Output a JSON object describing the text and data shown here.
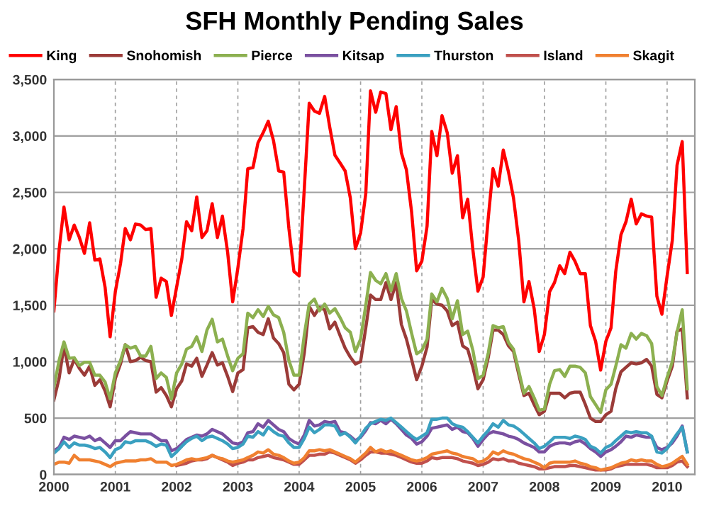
{
  "chart_data": {
    "type": "line",
    "title": "SFH Monthly Pending Sales",
    "x": [
      "2000-01",
      "2000-02",
      "2000-03",
      "2000-04",
      "2000-05",
      "2000-06",
      "2000-07",
      "2000-08",
      "2000-09",
      "2000-10",
      "2000-11",
      "2000-12",
      "2001-01",
      "2001-02",
      "2001-03",
      "2001-04",
      "2001-05",
      "2001-06",
      "2001-07",
      "2001-08",
      "2001-09",
      "2001-10",
      "2001-11",
      "2001-12",
      "2002-01",
      "2002-02",
      "2002-03",
      "2002-04",
      "2002-05",
      "2002-06",
      "2002-07",
      "2002-08",
      "2002-09",
      "2002-10",
      "2002-11",
      "2002-12",
      "2003-01",
      "2003-02",
      "2003-03",
      "2003-04",
      "2003-05",
      "2003-06",
      "2003-07",
      "2003-08",
      "2003-09",
      "2003-10",
      "2003-11",
      "2003-12",
      "2004-01",
      "2004-02",
      "2004-03",
      "2004-04",
      "2004-05",
      "2004-06",
      "2004-07",
      "2004-08",
      "2004-09",
      "2004-10",
      "2004-11",
      "2004-12",
      "2005-01",
      "2005-02",
      "2005-03",
      "2005-04",
      "2005-05",
      "2005-06",
      "2005-07",
      "2005-08",
      "2005-09",
      "2005-10",
      "2005-11",
      "2005-12",
      "2006-01",
      "2006-02",
      "2006-03",
      "2006-04",
      "2006-05",
      "2006-06",
      "2006-07",
      "2006-08",
      "2006-09",
      "2006-10",
      "2006-11",
      "2006-12",
      "2007-01",
      "2007-02",
      "2007-03",
      "2007-04",
      "2007-05",
      "2007-06",
      "2007-07",
      "2007-08",
      "2007-09",
      "2007-10",
      "2007-11",
      "2007-12",
      "2008-01",
      "2008-02",
      "2008-03",
      "2008-04",
      "2008-05",
      "2008-06",
      "2008-07",
      "2008-08",
      "2008-09",
      "2008-10",
      "2008-11",
      "2008-12",
      "2009-01",
      "2009-02",
      "2009-03",
      "2009-04",
      "2009-05",
      "2009-06",
      "2009-07",
      "2009-08",
      "2009-09",
      "2009-10",
      "2009-11",
      "2009-12",
      "2010-01",
      "2010-02",
      "2010-03",
      "2010-04",
      "2010-05"
    ],
    "series": [
      {
        "name": "King",
        "color": "#ff0000",
        "values": [
          1450,
          1990,
          2370,
          2080,
          2210,
          2100,
          1960,
          2230,
          1900,
          1910,
          1660,
          1220,
          1620,
          1870,
          2180,
          2080,
          2220,
          2210,
          2170,
          2180,
          1570,
          1740,
          1710,
          1410,
          1660,
          1910,
          2240,
          2160,
          2460,
          2100,
          2160,
          2400,
          2100,
          2290,
          1970,
          1530,
          1830,
          2180,
          2710,
          2720,
          2940,
          3030,
          3130,
          2960,
          2690,
          2680,
          2180,
          1800,
          1760,
          2540,
          3290,
          3220,
          3200,
          3350,
          3080,
          2830,
          2760,
          2690,
          2450,
          2000,
          2140,
          2490,
          3400,
          3210,
          3390,
          3375,
          3055,
          3260,
          2850,
          2700,
          2325,
          1805,
          1890,
          2200,
          3040,
          2825,
          3180,
          3030,
          2670,
          2825,
          2275,
          2440,
          1990,
          1625,
          1750,
          2280,
          2710,
          2555,
          2875,
          2680,
          2450,
          2075,
          1530,
          1710,
          1470,
          1090,
          1240,
          1620,
          1700,
          1850,
          1780,
          1970,
          1890,
          1780,
          1780,
          1320,
          1180,
          925,
          1180,
          1300,
          1800,
          2125,
          2240,
          2440,
          2220,
          2310,
          2290,
          2280,
          1580,
          1420,
          1760,
          2075,
          2740,
          2950,
          1790
        ]
      },
      {
        "name": "Snohomish",
        "color": "#9b3b38",
        "values": [
          660,
          850,
          1140,
          900,
          1020,
          940,
          880,
          960,
          790,
          840,
          740,
          600,
          850,
          980,
          1150,
          1000,
          1010,
          1040,
          1010,
          1000,
          730,
          770,
          700,
          600,
          760,
          830,
          980,
          960,
          1030,
          870,
          970,
          1080,
          970,
          990,
          870,
          735,
          900,
          930,
          1300,
          1310,
          1260,
          1240,
          1380,
          1210,
          1160,
          1080,
          800,
          750,
          800,
          1080,
          1490,
          1410,
          1480,
          1460,
          1290,
          1350,
          1230,
          1120,
          1040,
          980,
          1000,
          1300,
          1590,
          1550,
          1550,
          1700,
          1550,
          1700,
          1330,
          1200,
          1020,
          840,
          960,
          1130,
          1550,
          1510,
          1500,
          1450,
          1320,
          1350,
          1140,
          1110,
          950,
          760,
          840,
          1040,
          1280,
          1280,
          1240,
          1140,
          1090,
          890,
          700,
          720,
          620,
          530,
          560,
          720,
          720,
          720,
          680,
          720,
          730,
          730,
          620,
          500,
          470,
          470,
          530,
          560,
          760,
          910,
          950,
          990,
          980,
          990,
          1020,
          960,
          710,
          680,
          830,
          960,
          1270,
          1290,
          680
        ]
      },
      {
        "name": "Pierce",
        "color": "#8cb050",
        "values": [
          770,
          1010,
          1175,
          1030,
          1035,
          965,
          995,
          995,
          880,
          880,
          820,
          670,
          900,
          1010,
          1150,
          1120,
          1135,
          1050,
          1050,
          1135,
          850,
          900,
          860,
          670,
          900,
          980,
          1110,
          1135,
          1220,
          1090,
          1280,
          1375,
          1175,
          1200,
          1050,
          920,
          1030,
          1070,
          1430,
          1390,
          1460,
          1400,
          1490,
          1415,
          1390,
          1260,
          1010,
          880,
          880,
          1240,
          1510,
          1555,
          1450,
          1510,
          1430,
          1470,
          1390,
          1300,
          1260,
          1090,
          1200,
          1500,
          1790,
          1720,
          1690,
          1780,
          1630,
          1780,
          1560,
          1450,
          1250,
          1070,
          1100,
          1200,
          1600,
          1530,
          1650,
          1560,
          1380,
          1540,
          1240,
          1270,
          1100,
          850,
          880,
          1080,
          1320,
          1300,
          1310,
          1170,
          1110,
          920,
          720,
          780,
          680,
          570,
          580,
          800,
          920,
          930,
          870,
          960,
          960,
          950,
          900,
          690,
          620,
          550,
          750,
          800,
          960,
          1150,
          1120,
          1250,
          1200,
          1250,
          1230,
          1160,
          780,
          700,
          860,
          1000,
          1260,
          1460,
          760
        ]
      },
      {
        "name": "Kitsap",
        "color": "#7a50a0",
        "values": [
          210,
          240,
          330,
          310,
          340,
          330,
          320,
          340,
          300,
          320,
          280,
          240,
          300,
          300,
          340,
          380,
          370,
          360,
          360,
          360,
          330,
          300,
          300,
          210,
          230,
          270,
          310,
          330,
          350,
          340,
          360,
          400,
          380,
          360,
          320,
          280,
          270,
          290,
          370,
          380,
          450,
          420,
          480,
          440,
          400,
          380,
          320,
          290,
          270,
          350,
          480,
          430,
          440,
          470,
          460,
          470,
          380,
          370,
          340,
          300,
          330,
          390,
          460,
          450,
          480,
          450,
          490,
          450,
          400,
          350,
          320,
          270,
          290,
          340,
          410,
          420,
          430,
          440,
          400,
          420,
          380,
          370,
          320,
          250,
          310,
          360,
          380,
          370,
          360,
          340,
          330,
          310,
          280,
          260,
          240,
          200,
          200,
          250,
          270,
          280,
          280,
          270,
          290,
          300,
          270,
          230,
          200,
          160,
          200,
          220,
          250,
          290,
          340,
          330,
          350,
          340,
          330,
          330,
          240,
          220,
          240,
          280,
          340,
          430,
          200
        ]
      },
      {
        "name": "Thurston",
        "color": "#3aa0c0",
        "values": [
          190,
          230,
          290,
          240,
          280,
          260,
          260,
          250,
          230,
          240,
          200,
          150,
          220,
          240,
          290,
          280,
          300,
          300,
          300,
          280,
          250,
          270,
          260,
          160,
          200,
          250,
          290,
          320,
          340,
          300,
          330,
          340,
          320,
          300,
          270,
          230,
          240,
          270,
          340,
          330,
          380,
          350,
          420,
          380,
          350,
          340,
          280,
          240,
          240,
          320,
          420,
          370,
          400,
          440,
          440,
          430,
          350,
          370,
          330,
          280,
          340,
          410,
          450,
          470,
          490,
          480,
          500,
          460,
          420,
          380,
          340,
          310,
          340,
          370,
          490,
          490,
          500,
          500,
          450,
          430,
          420,
          380,
          330,
          280,
          340,
          390,
          450,
          420,
          480,
          440,
          430,
          400,
          360,
          320,
          280,
          230,
          250,
          290,
          330,
          330,
          330,
          320,
          340,
          330,
          310,
          250,
          230,
          190,
          240,
          260,
          300,
          340,
          380,
          370,
          380,
          370,
          370,
          340,
          200,
          190,
          230,
          300,
          360,
          420,
          200
        ]
      },
      {
        "name": "Island",
        "color": "#c0504d",
        "values": [
          null,
          null,
          null,
          null,
          null,
          null,
          null,
          null,
          null,
          null,
          null,
          null,
          null,
          null,
          null,
          null,
          null,
          null,
          null,
          null,
          null,
          null,
          null,
          null,
          80,
          90,
          100,
          120,
          130,
          130,
          140,
          170,
          150,
          130,
          110,
          80,
          100,
          110,
          130,
          130,
          150,
          160,
          170,
          150,
          140,
          130,
          110,
          90,
          90,
          130,
          170,
          170,
          180,
          180,
          200,
          190,
          170,
          150,
          130,
          100,
          130,
          170,
          200,
          200,
          190,
          190,
          180,
          170,
          150,
          130,
          110,
          100,
          100,
          120,
          150,
          140,
          150,
          150,
          150,
          140,
          120,
          110,
          100,
          80,
          90,
          110,
          140,
          130,
          140,
          120,
          120,
          100,
          90,
          80,
          70,
          50,
          50,
          60,
          70,
          70,
          70,
          80,
          80,
          70,
          60,
          50,
          40,
          40,
          40,
          50,
          70,
          80,
          90,
          90,
          90,
          90,
          90,
          80,
          60,
          60,
          60,
          80,
          110,
          120,
          70
        ]
      },
      {
        "name": "Skagit",
        "color": "#f08030",
        "values": [
          90,
          110,
          110,
          100,
          170,
          130,
          130,
          130,
          120,
          110,
          90,
          70,
          100,
          110,
          120,
          120,
          120,
          130,
          130,
          140,
          110,
          110,
          110,
          80,
          90,
          110,
          130,
          140,
          130,
          140,
          150,
          170,
          150,
          140,
          120,
          110,
          120,
          130,
          150,
          170,
          200,
          190,
          220,
          180,
          170,
          150,
          120,
          100,
          110,
          150,
          210,
          210,
          220,
          210,
          220,
          200,
          180,
          160,
          140,
          110,
          150,
          190,
          240,
          200,
          220,
          200,
          210,
          190,
          170,
          150,
          130,
          120,
          130,
          150,
          180,
          190,
          200,
          210,
          190,
          180,
          160,
          150,
          140,
          110,
          120,
          150,
          200,
          180,
          210,
          190,
          180,
          160,
          140,
          130,
          110,
          90,
          60,
          100,
          110,
          110,
          110,
          110,
          120,
          100,
          90,
          70,
          60,
          40,
          50,
          60,
          80,
          100,
          110,
          130,
          120,
          130,
          120,
          120,
          90,
          70,
          80,
          100,
          130,
          160,
          90
        ]
      }
    ],
    "xlim": [
      "2000-01-01",
      "2010-06-15"
    ],
    "xticks": [
      "2000",
      "2001",
      "2002",
      "2003",
      "2004",
      "2005",
      "2006",
      "2007",
      "2008",
      "2009",
      "2010"
    ],
    "ylim": [
      0,
      3500
    ],
    "yticks": [
      {
        "value": 0,
        "label": "0"
      },
      {
        "value": 500,
        "label": "500"
      },
      {
        "value": 1000,
        "label": "1,000"
      },
      {
        "value": 1500,
        "label": "1,500"
      },
      {
        "value": 2000,
        "label": "2,000"
      },
      {
        "value": 2500,
        "label": "2,500"
      },
      {
        "value": 3000,
        "label": "3,000"
      },
      {
        "value": 3500,
        "label": "3,500"
      }
    ],
    "grid": true,
    "legend": "top",
    "marker": "none",
    "line_style": "solid"
  }
}
